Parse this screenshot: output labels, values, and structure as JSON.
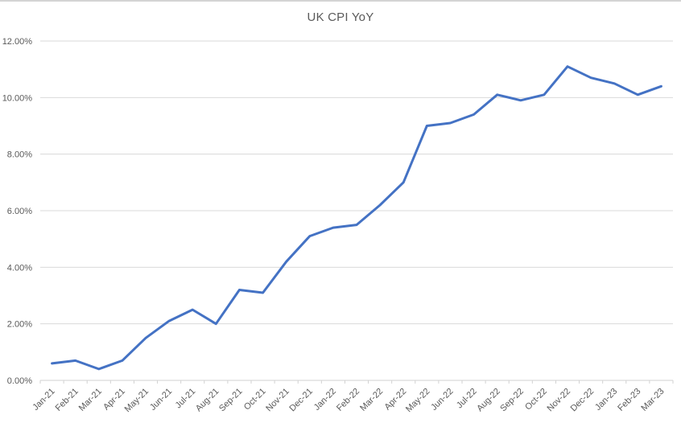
{
  "window": {
    "top_border_color": "#d4d4d4",
    "background": "#ffffff"
  },
  "chart_data": {
    "type": "line",
    "title": "UK CPI YoY",
    "xlabel": "",
    "ylabel": "",
    "categories": [
      "Jan-21",
      "Feb-21",
      "Mar-21",
      "Apr-21",
      "May-21",
      "Jun-21",
      "Jul-21",
      "Aug-21",
      "Sep-21",
      "Oct-21",
      "Nov-21",
      "Dec-21",
      "Jan-22",
      "Feb-22",
      "Mar-22",
      "Apr-22",
      "May-22",
      "Jun-22",
      "Jul-22",
      "Aug-22",
      "Sep-22",
      "Oct-22",
      "Nov-22",
      "Dec-22",
      "Jan-23",
      "Feb-23",
      "Mar-23"
    ],
    "series": [
      {
        "name": "UK CPI YoY",
        "color": "#4472C4",
        "values": [
          0.6,
          0.7,
          0.4,
          0.7,
          1.5,
          2.1,
          2.5,
          2.0,
          3.2,
          3.1,
          4.2,
          5.1,
          5.4,
          5.5,
          6.2,
          7.0,
          9.0,
          9.1,
          9.4,
          10.1,
          9.9,
          10.1,
          11.1,
          10.7,
          10.5,
          10.1,
          10.4
        ]
      }
    ],
    "unit": "%",
    "ylim": [
      0,
      12
    ],
    "y_ticks": [
      {
        "value": 0,
        "label": "0.00%"
      },
      {
        "value": 2,
        "label": "2.00%"
      },
      {
        "value": 4,
        "label": "4.00%"
      },
      {
        "value": 6,
        "label": "6.00%"
      },
      {
        "value": 8,
        "label": "8.00%"
      },
      {
        "value": 10,
        "label": "10.00%"
      },
      {
        "value": 12,
        "label": "12.00%"
      }
    ],
    "grid": "horizontal",
    "legend": "none",
    "x_label_rotation_deg": 45,
    "colors": {
      "line": "#4472C4",
      "gridline": "#D9D9D9",
      "axis_line": "#D2D2D2",
      "tick_label": "#595959",
      "title": "#595959"
    }
  }
}
